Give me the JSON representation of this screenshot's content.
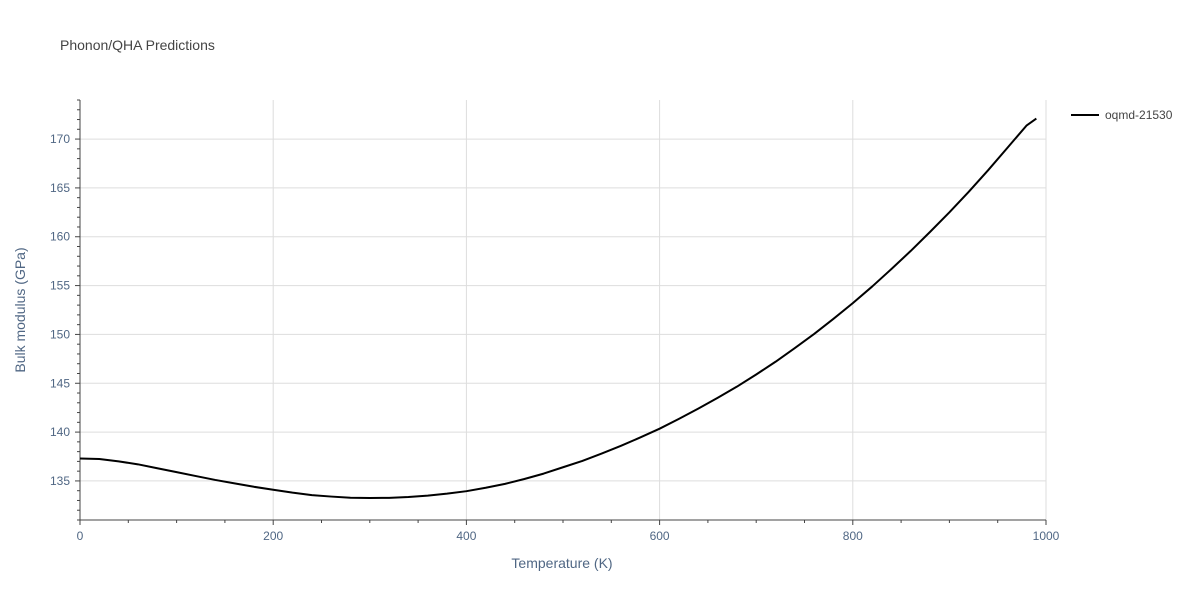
{
  "chart_data": {
    "type": "line",
    "title": "Phonon/QHA Predictions",
    "xlabel": "Temperature (K)",
    "ylabel": "Bulk modulus (GPa)",
    "xlim": [
      0,
      1000
    ],
    "ylim": [
      131,
      174
    ],
    "xticks": [
      0,
      200,
      400,
      600,
      800,
      1000
    ],
    "yticks": [
      135,
      140,
      145,
      150,
      155,
      160,
      165,
      170
    ],
    "grid": true,
    "legend_position": "top-right",
    "line_color": "#000000",
    "series": [
      {
        "name": "oqmd-21530",
        "x": [
          0,
          20,
          40,
          60,
          80,
          100,
          120,
          140,
          160,
          180,
          200,
          220,
          240,
          260,
          280,
          300,
          320,
          340,
          360,
          380,
          400,
          420,
          440,
          460,
          480,
          500,
          520,
          540,
          560,
          580,
          600,
          620,
          640,
          660,
          680,
          700,
          720,
          740,
          760,
          780,
          800,
          820,
          840,
          860,
          880,
          900,
          920,
          940,
          960,
          980,
          990
        ],
        "y": [
          137.3,
          137.25,
          137.0,
          136.7,
          136.3,
          135.9,
          135.5,
          135.1,
          134.75,
          134.4,
          134.1,
          133.8,
          133.55,
          133.4,
          133.28,
          133.25,
          133.27,
          133.35,
          133.5,
          133.7,
          133.95,
          134.3,
          134.7,
          135.2,
          135.75,
          136.4,
          137.05,
          137.8,
          138.6,
          139.45,
          140.35,
          141.35,
          142.4,
          143.5,
          144.65,
          145.9,
          147.2,
          148.6,
          150.05,
          151.6,
          153.2,
          154.9,
          156.7,
          158.55,
          160.5,
          162.5,
          164.6,
          166.8,
          169.1,
          171.4,
          172.1
        ]
      }
    ]
  }
}
